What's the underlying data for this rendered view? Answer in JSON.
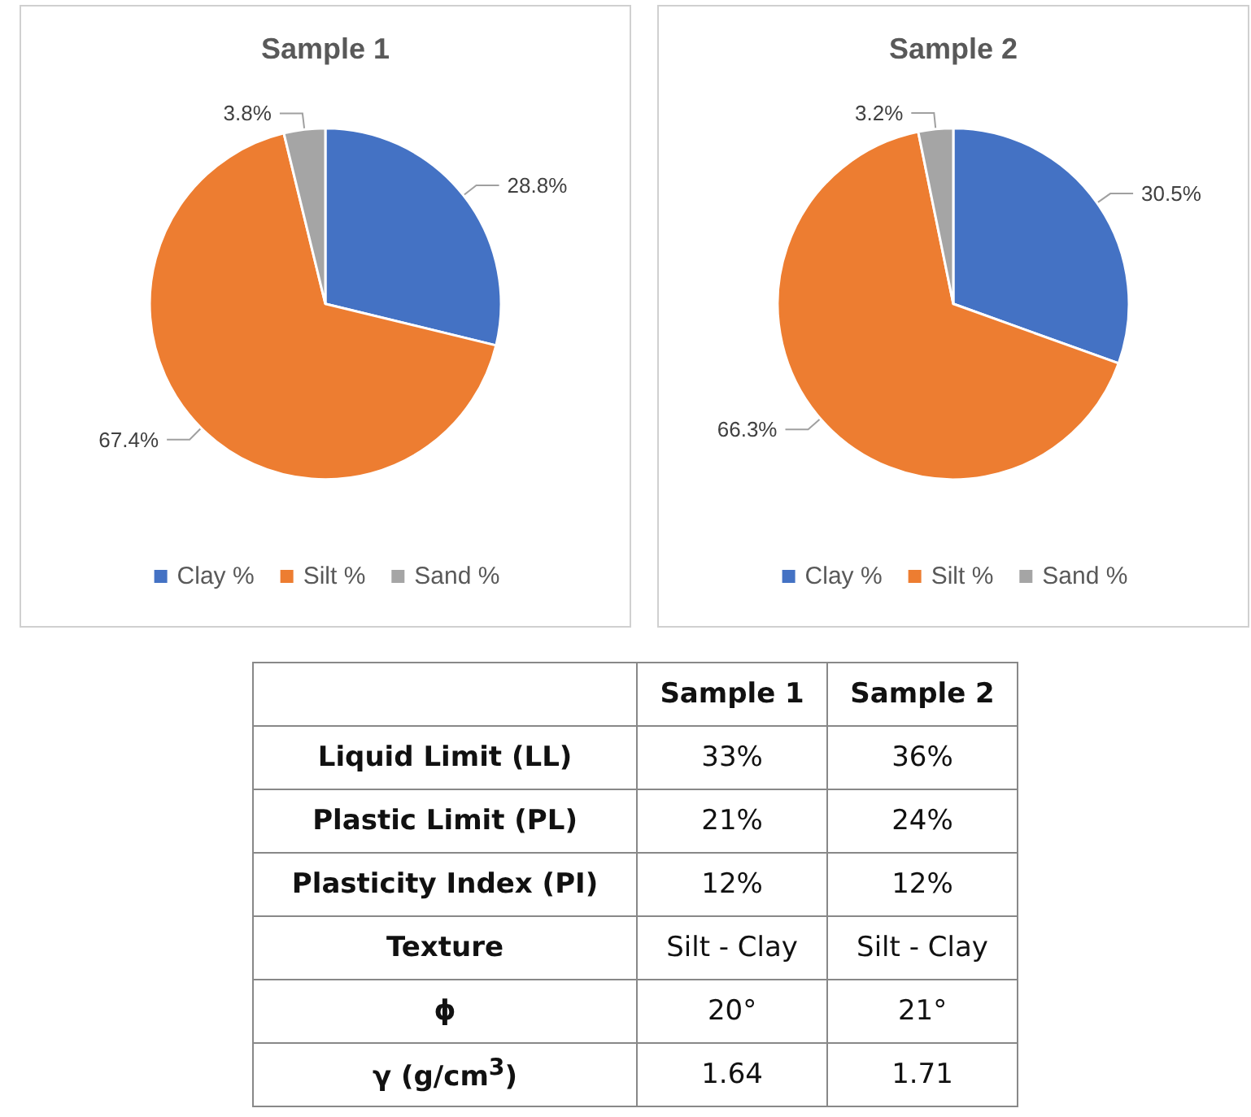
{
  "chart_data": [
    {
      "type": "pie",
      "title": "Sample 1",
      "categories": [
        "Clay %",
        "Silt %",
        "Sand %"
      ],
      "values": [
        28.8,
        67.4,
        3.8
      ],
      "value_labels": [
        "28.8%",
        "67.4%",
        "3.8%"
      ],
      "colors": [
        "#4472c4",
        "#ed7d31",
        "#a5a5a5"
      ],
      "legend": "bottom"
    },
    {
      "type": "pie",
      "title": "Sample 2",
      "categories": [
        "Clay %",
        "Silt %",
        "Sand %"
      ],
      "values": [
        30.5,
        66.3,
        3.2
      ],
      "value_labels": [
        "30.5%",
        "66.3%",
        "3.2%"
      ],
      "colors": [
        "#4472c4",
        "#ed7d31",
        "#a5a5a5"
      ],
      "legend": "bottom"
    },
    {
      "type": "other",
      "categories": [
        null,
        "Sample 1",
        "Sample 2"
      ],
      "y_categories": [
        "Liquid Limit (LL)",
        "Plastic Limit (PL)",
        "Plasticity Index (PI)",
        "Texture",
        "ϕ",
        "γ (g/cm$^{3}$)"
      ],
      "cell_labels": [
        [
          "33%",
          "36%"
        ],
        [
          "21%",
          "24%"
        ],
        [
          "12%",
          "12%"
        ],
        [
          "Silt - Clay",
          "Silt - Clay"
        ],
        [
          "20°",
          "21°"
        ],
        [
          "1.64",
          "1.71"
        ]
      ]
    }
  ]
}
